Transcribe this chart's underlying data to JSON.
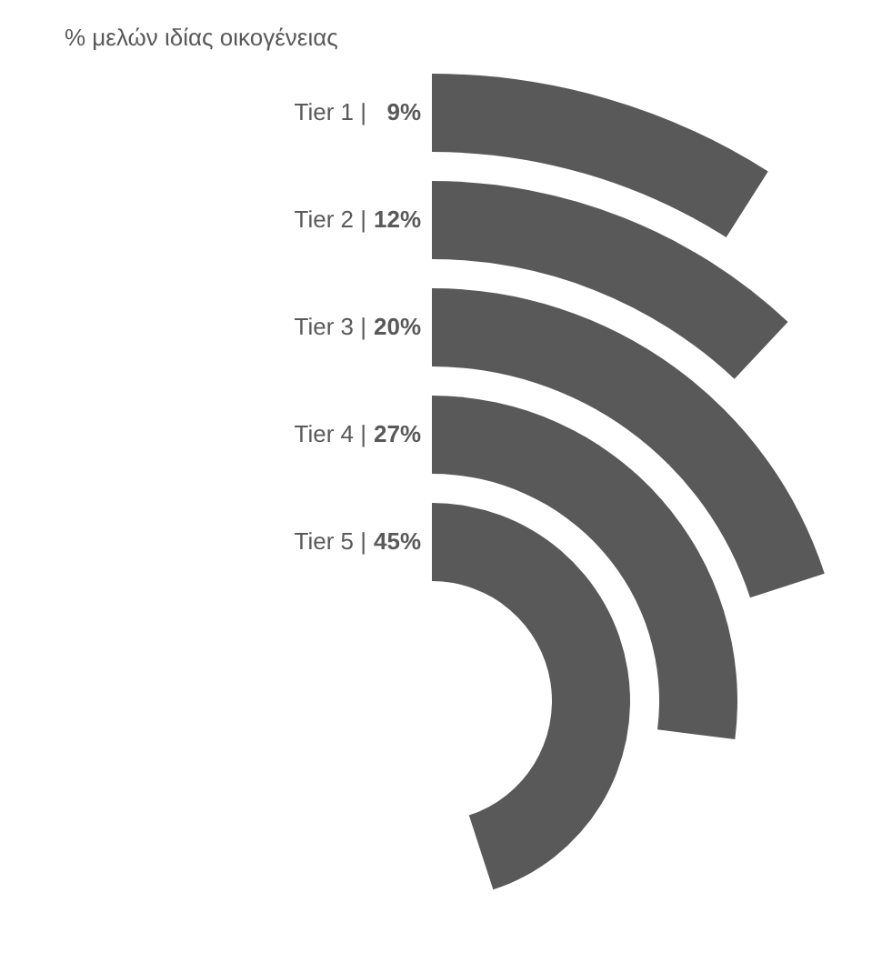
{
  "chart_data": {
    "type": "other",
    "title": "% μελών ιδίας οικογένειας",
    "categories": [
      "Tier 1 |",
      "Tier 2 |",
      "Tier 3 |",
      "Tier 4 |",
      "Tier 5 |"
    ],
    "values": [
      9,
      12,
      20,
      27,
      45
    ],
    "value_labels": [
      "9%",
      "12%",
      "20%",
      "27%",
      "45%"
    ],
    "color": "#595959"
  }
}
